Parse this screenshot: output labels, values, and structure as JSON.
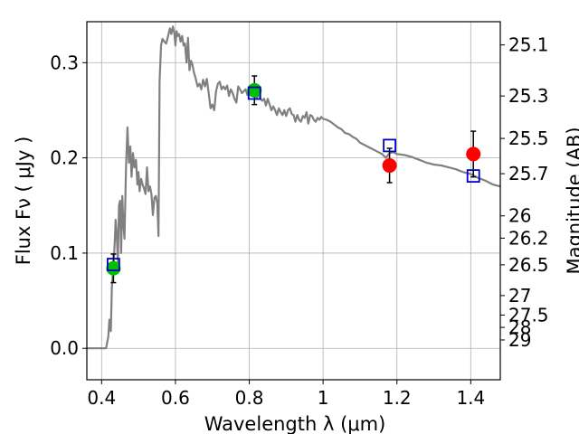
{
  "chart_data": {
    "type": "scatter",
    "title": "",
    "xlabel": "Wavelength  λ (μm)",
    "ylabel": "Flux  Fν  ( μJy )",
    "ylabel_right": "Magnitude (AB)",
    "xlim": [
      0.36,
      1.48
    ],
    "ylim": [
      -0.033,
      0.343
    ],
    "grid": true,
    "x_ticks": [
      0.4,
      0.6,
      0.8,
      1.0,
      1.2,
      1.4
    ],
    "x_tick_labels": [
      "0.4",
      "0.6",
      "0.8",
      "1",
      "1.2",
      "1.4"
    ],
    "y_ticks": [
      0.0,
      0.1,
      0.2,
      0.3
    ],
    "y_tick_labels": [
      "0.0",
      "0.1",
      "0.2",
      "0.3"
    ],
    "mag_ticks": [
      {
        "label": "25.1",
        "flux": 0.3186
      },
      {
        "label": "25.3",
        "flux": 0.265
      },
      {
        "label": "25.5",
        "flux": 0.2204
      },
      {
        "label": "25.7",
        "flux": 0.1834
      },
      {
        "label": "26",
        "flux": 0.1391
      },
      {
        "label": "26.2",
        "flux": 0.1157
      },
      {
        "label": "26.5",
        "flux": 0.0877
      },
      {
        "label": "27",
        "flux": 0.0554
      },
      {
        "label": "27.5",
        "flux": 0.0349
      },
      {
        "label": "28",
        "flux": 0.022
      },
      {
        "label": "29",
        "flux": 0.0088
      }
    ],
    "series": [
      {
        "type": "line",
        "color": "#808080",
        "x": [
          0.36,
          0.412,
          0.418,
          0.421,
          0.425,
          0.428,
          0.432,
          0.436,
          0.438,
          0.441,
          0.444,
          0.447,
          0.45,
          0.453,
          0.456,
          0.459,
          0.462,
          0.466,
          0.47,
          0.474,
          0.478,
          0.481,
          0.485,
          0.489,
          0.493,
          0.497,
          0.5,
          0.503,
          0.507,
          0.511,
          0.515,
          0.519,
          0.523,
          0.527,
          0.531,
          0.535,
          0.539,
          0.543,
          0.547,
          0.551,
          0.554,
          0.557,
          0.561,
          0.565,
          0.57,
          0.575,
          0.58,
          0.585,
          0.589,
          0.593,
          0.597,
          0.6,
          0.603,
          0.606,
          0.61,
          0.614,
          0.618,
          0.622,
          0.626,
          0.63,
          0.634,
          0.638,
          0.642,
          0.646,
          0.65,
          0.655,
          0.66,
          0.665,
          0.67,
          0.675,
          0.68,
          0.685,
          0.69,
          0.695,
          0.7,
          0.705,
          0.71,
          0.715,
          0.72,
          0.725,
          0.73,
          0.735,
          0.74,
          0.745,
          0.75,
          0.755,
          0.76,
          0.765,
          0.77,
          0.775,
          0.78,
          0.785,
          0.79,
          0.795,
          0.8,
          0.805,
          0.81,
          0.815,
          0.82,
          0.825,
          0.83,
          0.835,
          0.84,
          0.845,
          0.85,
          0.855,
          0.86,
          0.865,
          0.87,
          0.875,
          0.88,
          0.885,
          0.89,
          0.895,
          0.9,
          0.905,
          0.91,
          0.915,
          0.92,
          0.925,
          0.93,
          0.935,
          0.94,
          0.945,
          0.95,
          0.955,
          0.96,
          0.965,
          0.97,
          0.975,
          0.98,
          0.985,
          0.99,
          0.995,
          1.0,
          1.01,
          1.02,
          1.03,
          1.04,
          1.05,
          1.06,
          1.07,
          1.08,
          1.09,
          1.1,
          1.11,
          1.12,
          1.13,
          1.14,
          1.15,
          1.16,
          1.17,
          1.18,
          1.19,
          1.2,
          1.22,
          1.24,
          1.26,
          1.28,
          1.3,
          1.32,
          1.34,
          1.36,
          1.38,
          1.4,
          1.42,
          1.44,
          1.46,
          1.48
        ],
        "values": [
          0.0,
          0.0,
          0.012,
          0.03,
          0.018,
          0.065,
          0.085,
          0.115,
          0.135,
          0.118,
          0.09,
          0.15,
          0.155,
          0.1,
          0.16,
          0.13,
          0.115,
          0.19,
          0.232,
          0.195,
          0.212,
          0.18,
          0.205,
          0.19,
          0.198,
          0.172,
          0.185,
          0.165,
          0.178,
          0.172,
          0.168,
          0.162,
          0.19,
          0.165,
          0.17,
          0.162,
          0.14,
          0.158,
          0.16,
          0.152,
          0.118,
          0.28,
          0.318,
          0.325,
          0.322,
          0.32,
          0.328,
          0.336,
          0.33,
          0.338,
          0.331,
          0.318,
          0.333,
          0.328,
          0.33,
          0.322,
          0.328,
          0.318,
          0.32,
          0.3,
          0.326,
          0.292,
          0.302,
          0.298,
          0.29,
          0.283,
          0.275,
          0.278,
          0.272,
          0.282,
          0.275,
          0.283,
          0.268,
          0.252,
          0.256,
          0.25,
          0.27,
          0.278,
          0.28,
          0.272,
          0.275,
          0.272,
          0.276,
          0.265,
          0.272,
          0.268,
          0.262,
          0.258,
          0.275,
          0.272,
          0.268,
          0.27,
          0.272,
          0.266,
          0.272,
          0.268,
          0.272,
          0.269,
          0.262,
          0.268,
          0.262,
          0.26,
          0.262,
          0.255,
          0.262,
          0.256,
          0.25,
          0.254,
          0.25,
          0.245,
          0.252,
          0.248,
          0.245,
          0.25,
          0.244,
          0.25,
          0.252,
          0.246,
          0.245,
          0.238,
          0.245,
          0.24,
          0.238,
          0.244,
          0.242,
          0.248,
          0.236,
          0.245,
          0.244,
          0.24,
          0.238,
          0.242,
          0.24,
          0.243,
          0.241,
          0.24,
          0.238,
          0.235,
          0.232,
          0.23,
          0.226,
          0.225,
          0.222,
          0.22,
          0.216,
          0.214,
          0.212,
          0.21,
          0.208,
          0.206,
          0.204,
          0.2,
          0.205,
          0.206,
          0.204,
          0.203,
          0.201,
          0.198,
          0.195,
          0.193,
          0.192,
          0.19,
          0.188,
          0.185,
          0.183,
          0.179,
          0.176,
          0.172,
          0.17
        ]
      },
      {
        "type": "scatter",
        "marker": "circle",
        "points": [
          {
            "x": 0.432,
            "y": 0.084,
            "yerr": 0.015,
            "color": "#00c000"
          },
          {
            "x": 0.814,
            "y": 0.271,
            "yerr": 0.015,
            "color": "#00c000"
          },
          {
            "x": 1.18,
            "y": 0.192,
            "yerr": 0.018,
            "color": "#ff0000"
          },
          {
            "x": 1.407,
            "y": 0.204,
            "yerr": 0.024,
            "color": "#ff0000"
          }
        ]
      },
      {
        "type": "scatter",
        "marker": "open-square",
        "color": "#0000cc",
        "points": [
          {
            "x": 0.432,
            "y": 0.088
          },
          {
            "x": 0.814,
            "y": 0.268
          },
          {
            "x": 1.18,
            "y": 0.213
          },
          {
            "x": 1.407,
            "y": 0.181
          }
        ]
      }
    ]
  }
}
